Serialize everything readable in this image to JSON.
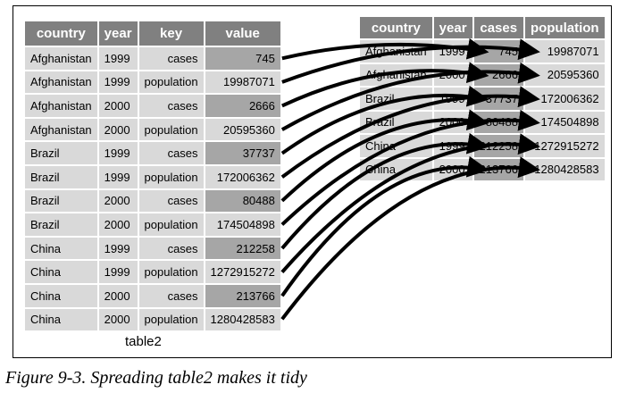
{
  "table2": {
    "columns": [
      "country",
      "year",
      "key",
      "value"
    ],
    "rows": [
      [
        "Afghanistan",
        "1999",
        "cases",
        "745"
      ],
      [
        "Afghanistan",
        "1999",
        "population",
        "19987071"
      ],
      [
        "Afghanistan",
        "2000",
        "cases",
        "2666"
      ],
      [
        "Afghanistan",
        "2000",
        "population",
        "20595360"
      ],
      [
        "Brazil",
        "1999",
        "cases",
        "37737"
      ],
      [
        "Brazil",
        "1999",
        "population",
        "172006362"
      ],
      [
        "Brazil",
        "2000",
        "cases",
        "80488"
      ],
      [
        "Brazil",
        "2000",
        "population",
        "174504898"
      ],
      [
        "China",
        "1999",
        "cases",
        "212258"
      ],
      [
        "China",
        "1999",
        "population",
        "1272915272"
      ],
      [
        "China",
        "2000",
        "cases",
        "213766"
      ],
      [
        "China",
        "2000",
        "population",
        "1280428583"
      ]
    ],
    "caption": "table2"
  },
  "tidy": {
    "columns": [
      "country",
      "year",
      "cases",
      "population"
    ],
    "rows": [
      [
        "Afghanistan",
        "1999",
        "745",
        "19987071"
      ],
      [
        "Afghanistan",
        "2000",
        "2666",
        "20595360"
      ],
      [
        "Brazil",
        "1999",
        "37737",
        "172006362"
      ],
      [
        "Brazil",
        "2000",
        "80488",
        "174504898"
      ],
      [
        "China",
        "1999",
        "212258",
        "1272915272"
      ],
      [
        "China",
        "2000",
        "213766",
        "1280428583"
      ]
    ]
  },
  "figure_caption": "Figure 9-3. Spreading table2 makes it tidy",
  "colors": {
    "header_bg": "#808080",
    "cell_bg": "#d9d9d9",
    "highlight_bg": "#a6a6a6",
    "arrow": "#000000"
  }
}
